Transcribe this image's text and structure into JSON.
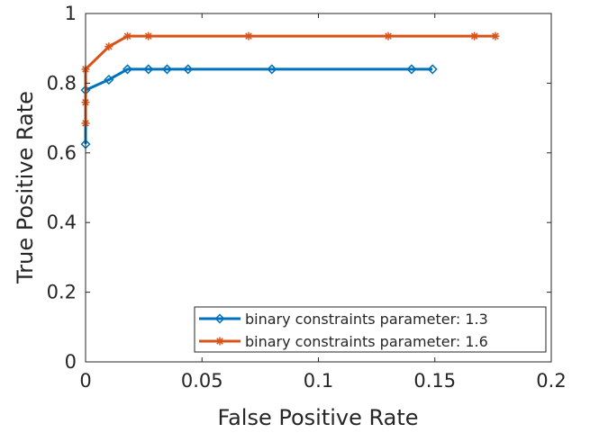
{
  "chart_data": {
    "type": "line",
    "title": "",
    "xlabel": "False Positive Rate",
    "ylabel": "True Positive Rate",
    "xlim": [
      0,
      0.2
    ],
    "ylim": [
      0,
      1
    ],
    "xticks": [
      0,
      0.05,
      0.1,
      0.15,
      0.2
    ],
    "xtick_labels": [
      "0",
      "0.05",
      "0.1",
      "0.15",
      "0.2"
    ],
    "yticks": [
      0,
      0.2,
      0.4,
      0.6,
      0.8,
      1
    ],
    "ytick_labels": [
      "0",
      "0.2",
      "0.4",
      "0.6",
      "0.8",
      "1"
    ],
    "grid": false,
    "legend_position": "bottom-right",
    "series": [
      {
        "name": "binary constraints parameter: 1.3",
        "color": "#0072BD",
        "marker": "diamond",
        "x": [
          0,
          0,
          0.01,
          0.018,
          0.027,
          0.035,
          0.044,
          0.08,
          0.14,
          0.149
        ],
        "y": [
          0.625,
          0.78,
          0.81,
          0.84,
          0.84,
          0.84,
          0.84,
          0.84,
          0.84,
          0.84
        ]
      },
      {
        "name": "binary constraints parameter: 1.6",
        "color": "#D95319",
        "marker": "asterisk",
        "x": [
          0,
          0,
          0,
          0.01,
          0.018,
          0.027,
          0.07,
          0.13,
          0.167,
          0.176
        ],
        "y": [
          0.685,
          0.745,
          0.84,
          0.905,
          0.935,
          0.935,
          0.935,
          0.935,
          0.935,
          0.935
        ]
      }
    ]
  }
}
